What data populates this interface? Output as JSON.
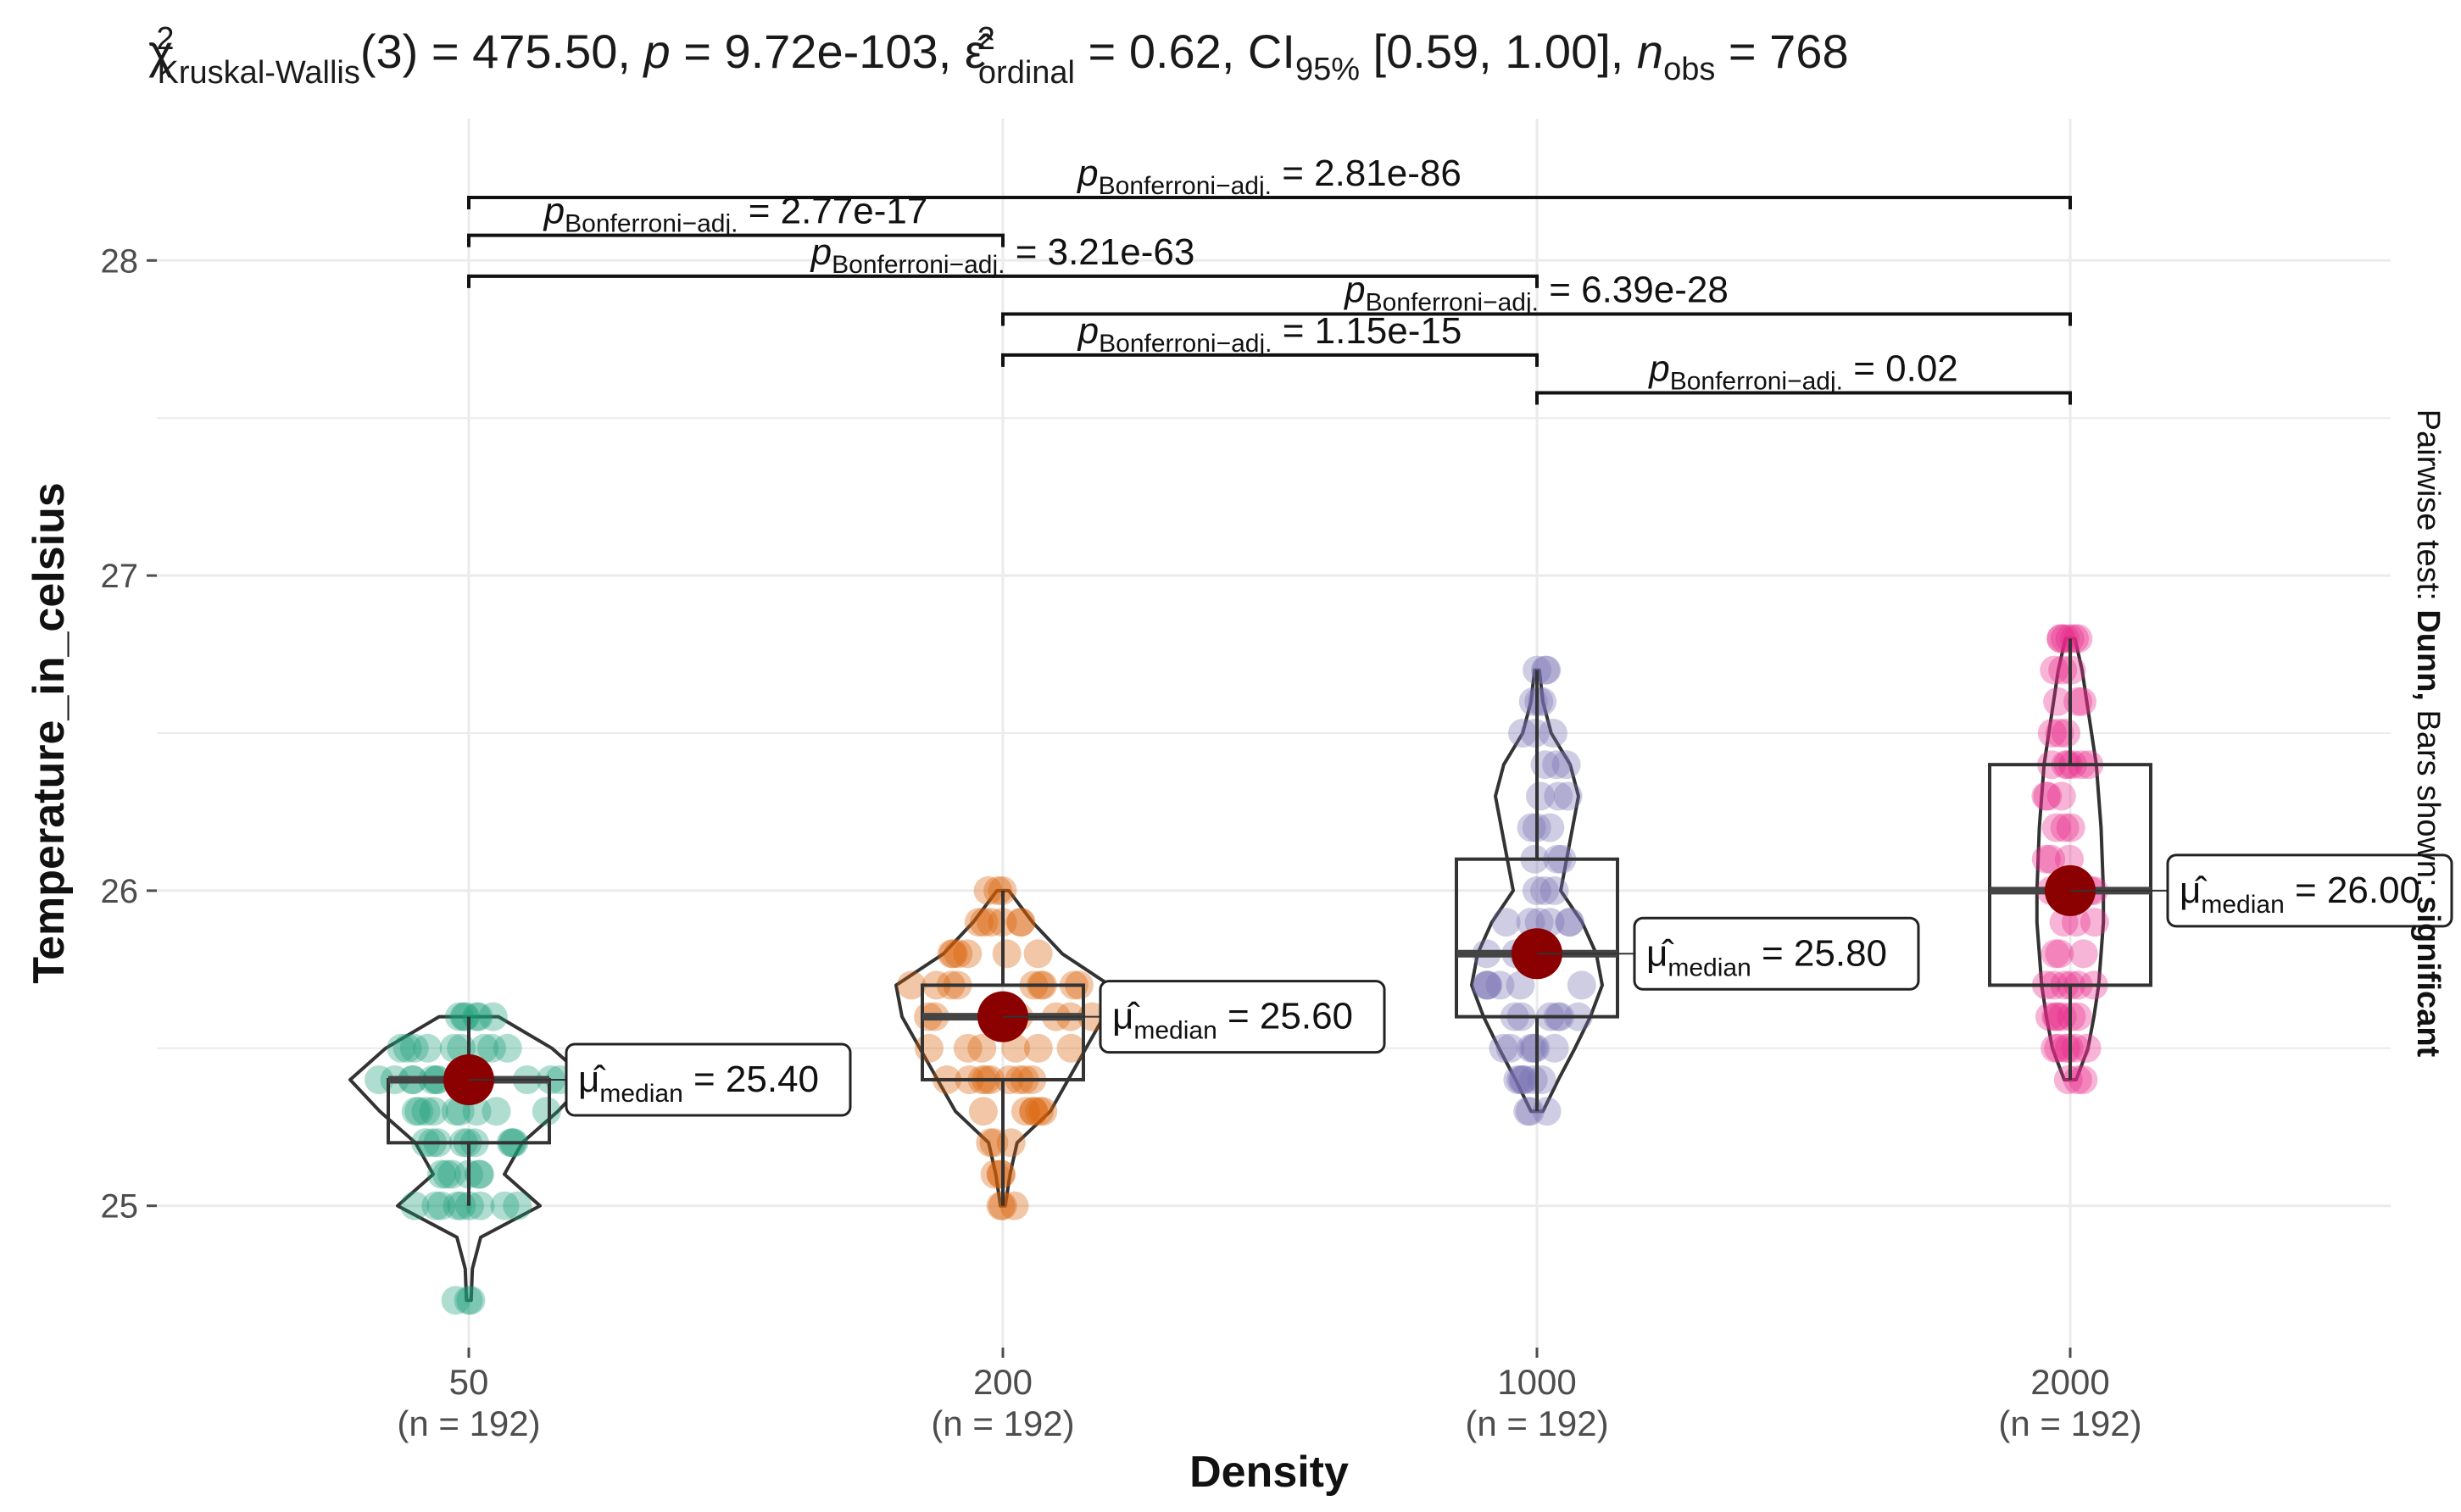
{
  "chart_data": {
    "type": "violin-box-jitter",
    "title_parts": {
      "stat": "χ",
      "stat_sup": "2",
      "stat_sub": "Kruskal-Wallis",
      "stat_rest": "(3) = 475.50, ",
      "p_sym": "p",
      "p_rest": " = 9.72e-103, ",
      "eps": "ε̂",
      "eps_sup": "2",
      "eps_sub": "ordinal",
      "eps_rest": " = 0.62, CI",
      "ci_sub": "95%",
      "ci_rest": " [0.59, 1.00], ",
      "n_sym": "n",
      "n_sub": "obs",
      "n_rest": " = 768"
    },
    "xlabel": "Density",
    "ylabel": "Temperature_in_celsius",
    "side_label_prefix": "Pairwise test: ",
    "side_label_bold1": "Dunn,",
    "side_label_mid": " Bars shown: ",
    "side_label_bold2": "significant",
    "ylim": [
      24.55,
      28.45
    ],
    "yticks": [
      25,
      26,
      27,
      28
    ],
    "ytick_labels": [
      "25",
      "26",
      "27",
      "28"
    ],
    "categories": [
      "50",
      "200",
      "1000",
      "2000"
    ],
    "n_labels": [
      "(n = 192)",
      "(n = 192)",
      "(n = 192)",
      "(n = 192)"
    ],
    "groups": [
      {
        "name": "50",
        "color": "#1b9e77",
        "median": 25.4,
        "q1": 25.2,
        "q3": 25.4,
        "whisk_lo": 25.0,
        "whisk_hi": 25.6,
        "min": 24.7,
        "max": 25.6,
        "median_label": "= 25.40",
        "violin": [
          [
            24.7,
            0.02
          ],
          [
            24.8,
            0.03
          ],
          [
            24.9,
            0.1
          ],
          [
            25.0,
            0.6
          ],
          [
            25.1,
            0.3
          ],
          [
            25.2,
            0.45
          ],
          [
            25.3,
            0.75
          ],
          [
            25.4,
            1.0
          ],
          [
            25.5,
            0.7
          ],
          [
            25.6,
            0.25
          ]
        ],
        "points": [
          24.7,
          25.0,
          25.0,
          25.0,
          25.1,
          25.1,
          25.2,
          25.2,
          25.2,
          25.3,
          25.3,
          25.3,
          25.4,
          25.4,
          25.4,
          25.4,
          25.5,
          25.5,
          25.5,
          25.6,
          25.6
        ]
      },
      {
        "name": "200",
        "color": "#d95f02",
        "median": 25.6,
        "q1": 25.4,
        "q3": 25.7,
        "whisk_lo": 25.0,
        "whisk_hi": 26.0,
        "min": 25.0,
        "max": 26.0,
        "median_label": "= 25.60",
        "violin": [
          [
            25.0,
            0.02
          ],
          [
            25.1,
            0.06
          ],
          [
            25.2,
            0.12
          ],
          [
            25.3,
            0.4
          ],
          [
            25.4,
            0.55
          ],
          [
            25.5,
            0.7
          ],
          [
            25.6,
            0.85
          ],
          [
            25.7,
            0.9
          ],
          [
            25.8,
            0.5
          ],
          [
            25.9,
            0.25
          ],
          [
            26.0,
            0.05
          ]
        ],
        "points": [
          25.0,
          25.1,
          25.2,
          25.3,
          25.3,
          25.4,
          25.4,
          25.4,
          25.5,
          25.5,
          25.6,
          25.6,
          25.6,
          25.7,
          25.7,
          25.7,
          25.8,
          25.8,
          25.9,
          25.9,
          26.0
        ]
      },
      {
        "name": "1000",
        "color": "#7570b3",
        "median": 25.8,
        "q1": 25.6,
        "q3": 26.1,
        "whisk_lo": 25.3,
        "whisk_hi": 26.7,
        "min": 25.3,
        "max": 26.7,
        "median_label": "= 25.80",
        "violin": [
          [
            25.3,
            0.05
          ],
          [
            25.4,
            0.18
          ],
          [
            25.5,
            0.32
          ],
          [
            25.6,
            0.45
          ],
          [
            25.7,
            0.55
          ],
          [
            25.8,
            0.5
          ],
          [
            25.9,
            0.38
          ],
          [
            26.0,
            0.2
          ],
          [
            26.1,
            0.25
          ],
          [
            26.2,
            0.3
          ],
          [
            26.3,
            0.35
          ],
          [
            26.4,
            0.28
          ],
          [
            26.5,
            0.12
          ],
          [
            26.6,
            0.05
          ],
          [
            26.7,
            0.02
          ]
        ],
        "points": [
          25.3,
          25.4,
          25.4,
          25.5,
          25.5,
          25.6,
          25.6,
          25.7,
          25.7,
          25.8,
          25.8,
          25.9,
          25.9,
          26.0,
          26.1,
          26.2,
          26.3,
          26.4,
          26.5,
          26.6,
          26.7
        ]
      },
      {
        "name": "2000",
        "color": "#e7298a",
        "median": 26.0,
        "q1": 25.7,
        "q3": 26.4,
        "whisk_lo": 25.4,
        "whisk_hi": 26.8,
        "min": 25.4,
        "max": 26.8,
        "median_label": "= 26.00",
        "violin": [
          [
            25.4,
            0.05
          ],
          [
            25.5,
            0.15
          ],
          [
            25.6,
            0.2
          ],
          [
            25.7,
            0.24
          ],
          [
            25.8,
            0.26
          ],
          [
            25.9,
            0.28
          ],
          [
            26.0,
            0.28
          ],
          [
            26.1,
            0.27
          ],
          [
            26.2,
            0.26
          ],
          [
            26.3,
            0.24
          ],
          [
            26.4,
            0.22
          ],
          [
            26.5,
            0.18
          ],
          [
            26.6,
            0.14
          ],
          [
            26.7,
            0.1
          ],
          [
            26.8,
            0.04
          ]
        ],
        "points": [
          25.4,
          25.5,
          25.5,
          25.6,
          25.6,
          25.7,
          25.7,
          25.8,
          25.9,
          26.0,
          26.0,
          26.1,
          26.2,
          26.3,
          26.4,
          26.4,
          26.5,
          26.6,
          26.7,
          26.8,
          26.8
        ]
      }
    ],
    "median_symbol": "μ̂",
    "median_sub": "median",
    "comparisons": [
      {
        "from": "50",
        "to": "2000",
        "level": 28.2,
        "label_pre": "p",
        "label_sub": "Bonferroni−adj.",
        "label_val": " = 2.81e-86"
      },
      {
        "from": "50",
        "to": "200",
        "level": 28.08,
        "label_pre": "p",
        "label_sub": "Bonferroni−adj.",
        "label_val": " = 2.77e-17"
      },
      {
        "from": "50",
        "to": "1000",
        "level": 27.95,
        "label_pre": "p",
        "label_sub": "Bonferroni−adj.",
        "label_val": " = 3.21e-63"
      },
      {
        "from": "200",
        "to": "2000",
        "level": 27.83,
        "label_pre": "p",
        "label_sub": "Bonferroni−adj.",
        "label_val": " = 6.39e-28"
      },
      {
        "from": "200",
        "to": "1000",
        "level": 27.7,
        "label_pre": "p",
        "label_sub": "Bonferroni−adj.",
        "label_val": " = 1.15e-15"
      },
      {
        "from": "1000",
        "to": "2000",
        "level": 27.58,
        "label_pre": "p",
        "label_sub": "Bonferroni−adj.",
        "label_val": " = 0.02"
      }
    ],
    "median_point_color": "#8b0000"
  }
}
